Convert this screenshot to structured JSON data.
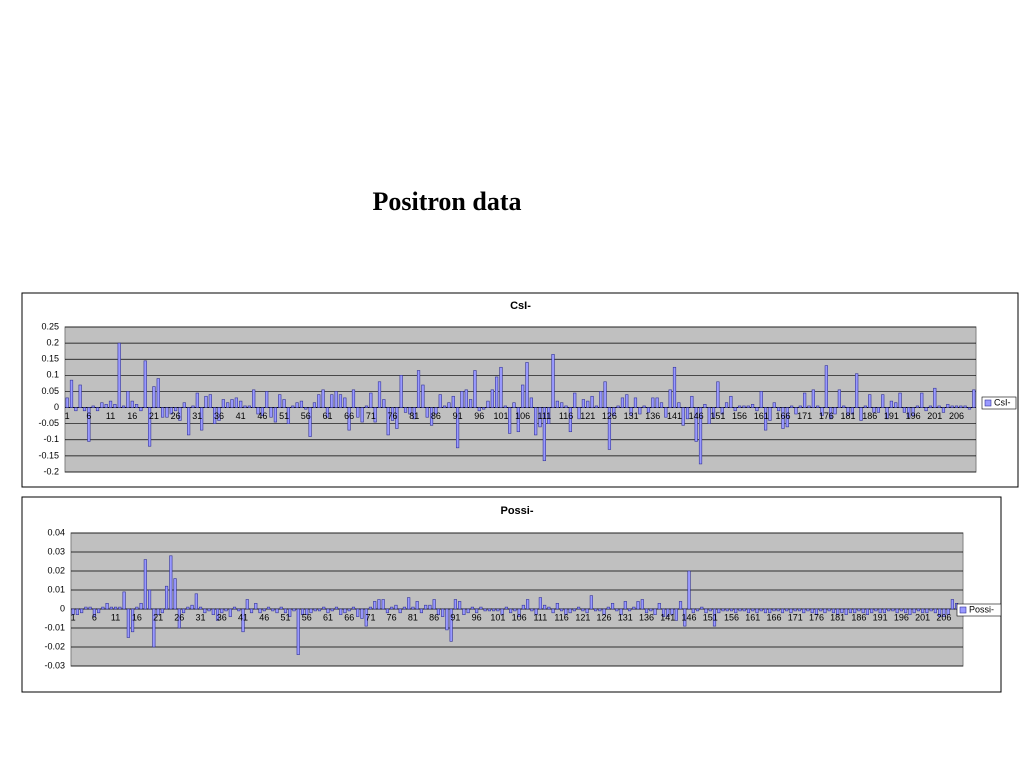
{
  "title": "Positron data",
  "chart_data": [
    {
      "type": "bar",
      "title": "CsI-",
      "categories": [
        "1",
        null,
        null,
        null,
        null,
        "6",
        null,
        null,
        null,
        null,
        "11",
        null,
        null,
        null,
        null,
        "16",
        null,
        null,
        null,
        null,
        "21",
        null,
        null,
        null,
        null,
        "26",
        null,
        null,
        null,
        null,
        "31",
        null,
        null,
        null,
        null,
        "36",
        null,
        null,
        null,
        null,
        "41",
        null,
        null,
        null,
        null,
        "46",
        null,
        null,
        null,
        null,
        "51",
        null,
        null,
        null,
        null,
        "56",
        null,
        null,
        null,
        null,
        "61",
        null,
        null,
        null,
        null,
        "66",
        null,
        null,
        null,
        null,
        "71",
        null,
        null,
        null,
        null,
        "76",
        null,
        null,
        null,
        null,
        "81",
        null,
        null,
        null,
        null,
        "86",
        null,
        null,
        null,
        null,
        "91",
        null,
        null,
        null,
        null,
        "96",
        null,
        null,
        null,
        null,
        "101",
        null,
        null,
        null,
        null,
        "106",
        null,
        null,
        null,
        null,
        "111",
        null,
        null,
        null,
        null,
        "116",
        null,
        null,
        null,
        null,
        "121",
        null,
        null,
        null,
        null,
        "126",
        null,
        null,
        null,
        null,
        "131",
        null,
        null,
        null,
        null,
        "136",
        null,
        null,
        null,
        null,
        "141",
        null,
        null,
        null,
        null,
        "146",
        null,
        null,
        null,
        null,
        "151",
        null,
        null,
        null,
        null,
        "156",
        null,
        null,
        null,
        null,
        "161",
        null,
        null,
        null,
        null,
        "166",
        null,
        null,
        null,
        null,
        "171",
        null,
        null,
        null,
        null,
        "176",
        null,
        null,
        null,
        null,
        "181",
        null,
        null,
        null,
        null,
        "186",
        null,
        null,
        null,
        null,
        "191",
        null,
        null,
        null,
        null,
        "196",
        null,
        null,
        null,
        null,
        "201",
        null,
        null,
        null,
        null,
        "206",
        null,
        null,
        null,
        null
      ],
      "series": [
        {
          "name": "CsI-",
          "color": "#9999ff",
          "values": [
            0.03,
            0.085,
            -0.01,
            0.07,
            -0.01,
            -0.105,
            0.005,
            -0.01,
            0.015,
            0.01,
            0.02,
            0.01,
            0.2,
            0.005,
            0.05,
            0.02,
            0.01,
            -0.01,
            0.145,
            -0.12,
            0.065,
            0.09,
            -0.03,
            -0.03,
            -0.02,
            -0.01,
            -0.04,
            0.015,
            -0.085,
            0.005,
            0.045,
            -0.07,
            0.035,
            0.04,
            -0.05,
            -0.04,
            0.025,
            0.015,
            0.025,
            0.03,
            0.02,
            0.005,
            0.005,
            0.055,
            -0.02,
            -0.025,
            0.05,
            -0.03,
            -0.045,
            0.04,
            0.025,
            -0.05,
            0.005,
            0.015,
            0.02,
            -0.005,
            -0.09,
            0.015,
            0.04,
            0.055,
            -0.03,
            0.04,
            0.05,
            0.04,
            0.03,
            -0.07,
            0.055,
            -0.03,
            -0.045,
            0.005,
            0.045,
            -0.045,
            0.08,
            0.025,
            -0.085,
            -0.04,
            -0.065,
            0.1,
            -0.015,
            -0.02,
            -0.035,
            0.115,
            0.07,
            -0.03,
            -0.055,
            -0.02,
            0.04,
            0.005,
            0.015,
            0.035,
            -0.125,
            0.05,
            0.055,
            0.025,
            0.115,
            -0.01,
            -0.005,
            0.02,
            0.055,
            0.095,
            0.125,
            0.005,
            -0.08,
            0.015,
            -0.075,
            0.07,
            0.14,
            0.03,
            -0.085,
            -0.06,
            -0.165,
            -0.05,
            0.165,
            0.02,
            0.015,
            0.005,
            -0.075,
            0.045,
            -0.035,
            0.025,
            0.02,
            0.035,
            0.005,
            0.05,
            0.08,
            -0.13,
            -0.025,
            0.005,
            0.03,
            0.04,
            -0.025,
            0.03,
            -0.02,
            0.005,
            -0.015,
            0.03,
            0.03,
            0.015,
            -0.03,
            0.055,
            0.125,
            0.015,
            -0.055,
            -0.035,
            0.035,
            -0.105,
            -0.175,
            0.01,
            -0.05,
            -0.03,
            0.08,
            -0.02,
            0.015,
            0.035,
            -0.01,
            0.005,
            0.005,
            0.005,
            0.01,
            -0.01,
            0.05,
            -0.07,
            -0.04,
            0.015,
            -0.01,
            -0.065,
            -0.06,
            0.005,
            -0.02,
            0.005,
            0.045,
            0.005,
            0.055,
            0.005,
            -0.025,
            0.13,
            -0.035,
            -0.02,
            0.055,
            0.005,
            -0.025,
            -0.02,
            0.105,
            -0.04,
            0.005,
            0.04,
            -0.015,
            -0.015,
            0.04,
            -0.035,
            0.02,
            0.015,
            0.045,
            -0.015,
            -0.03,
            -0.025,
            0.005,
            0.045,
            -0.01,
            0.005,
            0.06,
            0.005,
            -0.015,
            0.01,
            0.005,
            0.005,
            0.005,
            0.005,
            -0.005,
            0.055
          ]
        }
      ],
      "ylim": [
        -0.2,
        0.25
      ],
      "yticks": [
        -0.2,
        -0.15,
        -0.1,
        -0.05,
        0,
        0.05,
        0.1,
        0.15,
        0.2,
        0.25
      ],
      "grid": true,
      "legend": "right"
    },
    {
      "type": "bar",
      "title": "Possi-",
      "categories": [
        "1",
        null,
        null,
        null,
        null,
        "6",
        null,
        null,
        null,
        null,
        "11",
        null,
        null,
        null,
        null,
        "16",
        null,
        null,
        null,
        null,
        "21",
        null,
        null,
        null,
        null,
        "26",
        null,
        null,
        null,
        null,
        "31",
        null,
        null,
        null,
        null,
        "36",
        null,
        null,
        null,
        null,
        "41",
        null,
        null,
        null,
        null,
        "46",
        null,
        null,
        null,
        null,
        "51",
        null,
        null,
        null,
        null,
        "56",
        null,
        null,
        null,
        null,
        "61",
        null,
        null,
        null,
        null,
        "66",
        null,
        null,
        null,
        null,
        "71",
        null,
        null,
        null,
        null,
        "76",
        null,
        null,
        null,
        null,
        "81",
        null,
        null,
        null,
        null,
        "86",
        null,
        null,
        null,
        null,
        "91",
        null,
        null,
        null,
        null,
        "96",
        null,
        null,
        null,
        null,
        "101",
        null,
        null,
        null,
        null,
        "106",
        null,
        null,
        null,
        null,
        "111",
        null,
        null,
        null,
        null,
        "116",
        null,
        null,
        null,
        null,
        "121",
        null,
        null,
        null,
        null,
        "126",
        null,
        null,
        null,
        null,
        "131",
        null,
        null,
        null,
        null,
        "136",
        null,
        null,
        null,
        null,
        "141",
        null,
        null,
        null,
        null,
        "146",
        null,
        null,
        null,
        null,
        "151",
        null,
        null,
        null,
        null,
        "156",
        null,
        null,
        null,
        null,
        "161",
        null,
        null,
        null,
        null,
        "166",
        null,
        null,
        null,
        null,
        "171",
        null,
        null,
        null,
        null,
        "176",
        null,
        null,
        null,
        null,
        "181",
        null,
        null,
        null,
        null,
        "186",
        null,
        null,
        null,
        null,
        "191",
        null,
        null,
        null,
        null,
        "196",
        null,
        null,
        null,
        null,
        "201",
        null,
        null,
        null,
        null,
        "206",
        null,
        null,
        null,
        null
      ],
      "series": [
        {
          "name": "Possi-",
          "color": "#9999ff",
          "values": [
            -0.003,
            -0.003,
            -0.002,
            0.001,
            0.001,
            -0.004,
            -0.002,
            0.001,
            0.003,
            0.001,
            0.001,
            0.001,
            0.009,
            -0.015,
            -0.012,
            0.001,
            0.003,
            0.026,
            0.01,
            -0.02,
            -0.003,
            -0.002,
            0.012,
            0.028,
            0.016,
            -0.01,
            -0.002,
            0.001,
            0.002,
            0.008,
            0.001,
            -0.002,
            -0.001,
            -0.003,
            -0.006,
            -0.002,
            -0.001,
            -0.004,
            0.001,
            -0.001,
            -0.012,
            0.005,
            -0.002,
            0.003,
            -0.002,
            -0.001,
            0.001,
            -0.001,
            -0.002,
            0.001,
            -0.002,
            -0.004,
            -0.001,
            -0.024,
            -0.003,
            -0.003,
            -0.002,
            -0.001,
            -0.001,
            0.001,
            -0.002,
            -0.001,
            0.001,
            -0.003,
            -0.002,
            -0.001,
            0.001,
            -0.004,
            -0.005,
            -0.009,
            0.001,
            0.004,
            0.005,
            0.005,
            -0.002,
            0.001,
            0.002,
            -0.002,
            0.001,
            0.006,
            0.001,
            0.004,
            -0.002,
            0.002,
            0.002,
            0.005,
            -0.003,
            -0.004,
            -0.011,
            -0.017,
            0.005,
            0.004,
            -0.003,
            -0.002,
            0.001,
            -0.002,
            0.001,
            -0.001,
            -0.001,
            -0.001,
            -0.001,
            -0.003,
            0.001,
            -0.002,
            -0.001,
            -0.004,
            0.002,
            0.005,
            -0.001,
            -0.003,
            0.006,
            0.002,
            0.001,
            -0.002,
            0.003,
            -0.001,
            -0.003,
            -0.002,
            -0.001,
            0.001,
            -0.001,
            -0.002,
            0.007,
            -0.001,
            -0.001,
            -0.003,
            0.001,
            0.003,
            -0.001,
            -0.003,
            0.004,
            -0.001,
            0.001,
            0.004,
            0.005,
            -0.002,
            -0.001,
            -0.003,
            0.003,
            -0.004,
            -0.004,
            -0.003,
            -0.006,
            0.004,
            -0.009,
            0.02,
            -0.002,
            -0.001,
            0.001,
            -0.002,
            -0.001,
            -0.009,
            -0.002,
            -0.001,
            -0.001,
            -0.001,
            -0.002,
            -0.001,
            -0.001,
            -0.002,
            -0.001,
            -0.002,
            -0.001,
            -0.002,
            -0.002,
            -0.001,
            -0.001,
            -0.002,
            -0.001,
            -0.002,
            -0.001,
            -0.001,
            -0.002,
            -0.001,
            -0.002,
            -0.003,
            -0.001,
            -0.002,
            -0.001,
            -0.002,
            -0.003,
            -0.002,
            -0.003,
            -0.002,
            -0.002,
            -0.001,
            -0.002,
            -0.003,
            -0.002,
            -0.001,
            -0.002,
            -0.002,
            -0.001,
            -0.001,
            -0.002,
            -0.001,
            -0.002,
            -0.003,
            -0.002,
            -0.001,
            -0.002,
            -0.002,
            -0.001,
            -0.002,
            -0.004,
            -0.004,
            -0.003,
            0.005,
            0.003,
            0.002
          ]
        }
      ],
      "ylim": [
        -0.03,
        0.04
      ],
      "yticks": [
        -0.03,
        -0.02,
        -0.01,
        0,
        0.01,
        0.02,
        0.03,
        0.04
      ],
      "grid": true,
      "legend": "right"
    }
  ]
}
